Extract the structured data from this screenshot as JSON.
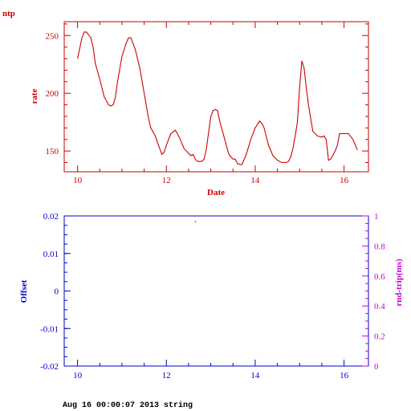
{
  "page_label": "ntp",
  "footer_text": "Aug 16 00:00:07 2013 string",
  "colors": {
    "top": "#cc0000",
    "bottom": "#0000cc",
    "right": "#cc00cc",
    "point": "#000000"
  },
  "chart_data": [
    {
      "type": "line",
      "ylabel": "rate",
      "xlabel": "Date",
      "xlim": [
        9.7,
        16.55
      ],
      "ylim": [
        132,
        262
      ],
      "x_ticks": [
        10,
        12,
        14,
        16
      ],
      "y_ticks": [
        150,
        200,
        250
      ],
      "x_tick_labels": [
        "10",
        "12",
        "14",
        "16"
      ],
      "y_tick_labels": [
        "150",
        "200",
        "250"
      ],
      "grid": false,
      "series": [
        {
          "x": [
            10.0,
            10.1,
            10.15,
            10.2,
            10.3,
            10.35,
            10.4,
            10.5,
            10.6,
            10.7,
            10.75,
            10.8,
            10.85,
            10.9,
            11.0,
            11.05,
            11.1,
            11.15,
            11.2,
            11.3,
            11.4,
            11.5,
            11.6,
            11.65,
            11.75,
            11.85,
            11.9,
            11.95,
            12.0,
            12.05,
            12.1,
            12.2,
            12.25,
            12.3,
            12.4,
            12.5,
            12.55,
            12.6,
            12.65,
            12.7,
            12.8,
            12.85,
            12.9,
            13.0,
            13.05,
            13.1,
            13.15,
            13.2,
            13.3,
            13.4,
            13.45,
            13.5,
            13.55,
            13.6,
            13.7,
            13.8,
            13.9,
            14.0,
            14.1,
            14.15,
            14.2,
            14.3,
            14.4,
            14.5,
            14.6,
            14.7,
            14.75,
            14.8,
            14.85,
            14.9,
            14.95,
            15.0,
            15.05,
            15.1,
            15.15,
            15.2,
            15.25,
            15.3,
            15.4,
            15.5,
            15.55,
            15.6,
            15.65,
            15.7,
            15.8,
            15.85,
            15.9,
            16.0,
            16.1,
            16.2,
            16.3
          ],
          "values": [
            230,
            248,
            253,
            253,
            248,
            240,
            226,
            212,
            197,
            190,
            189,
            190,
            196,
            210,
            232,
            238,
            244,
            248,
            248,
            238,
            222,
            200,
            178,
            170,
            163,
            152,
            147,
            149,
            155,
            160,
            165,
            168,
            165,
            161,
            152,
            148,
            146,
            147,
            143,
            141,
            141,
            143,
            152,
            180,
            185,
            186,
            185,
            176,
            162,
            148,
            145,
            143,
            143,
            139,
            138,
            147,
            160,
            170,
            176,
            174,
            170,
            155,
            146,
            142,
            140,
            140,
            141,
            145,
            152,
            163,
            175,
            205,
            228,
            222,
            205,
            190,
            178,
            167,
            163,
            162,
            163,
            160,
            142,
            143,
            150,
            155,
            165,
            165,
            165,
            160,
            151
          ]
        }
      ]
    },
    {
      "type": "scatter",
      "ylabel": "Offset",
      "y2label": "rnd-trip(ms)",
      "xlim": [
        9.7,
        16.55
      ],
      "ylim": [
        -0.02,
        0.02
      ],
      "y2lim": [
        0,
        1
      ],
      "x_ticks": [
        10,
        12,
        14,
        16
      ],
      "y_ticks": [
        -0.02,
        -0.01,
        0,
        0.01,
        0.02
      ],
      "y2_ticks": [
        0,
        0.2,
        0.4,
        0.6,
        0.8,
        1
      ],
      "x_tick_labels": [
        "10",
        "12",
        "14",
        "16"
      ],
      "y_tick_labels": [
        "-0.02",
        "-0.01",
        "0",
        "0.01",
        "0.02"
      ],
      "y2_tick_labels": [
        "0",
        "0.2",
        "0.4",
        "0.6",
        "0.8",
        "1"
      ],
      "grid": false,
      "series": [
        {
          "x": [
            12.65
          ],
          "values": [
            0.0185
          ]
        }
      ]
    }
  ]
}
